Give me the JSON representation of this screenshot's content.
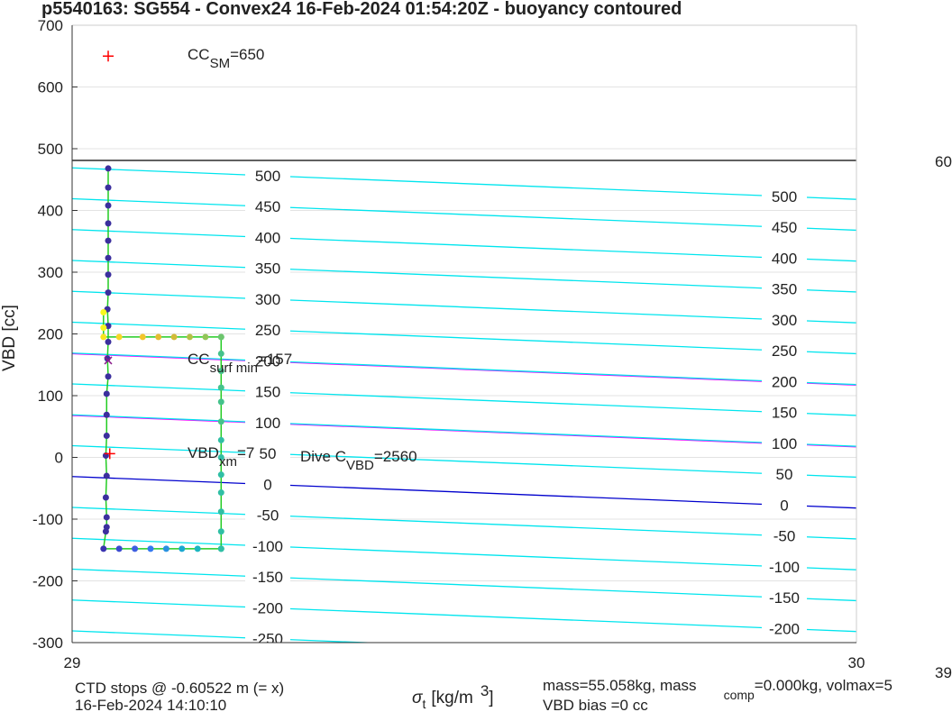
{
  "chart_data": {
    "type": "scatter",
    "title": "p5540163: SG554 - Convex24 16-Feb-2024 01:54:20Z - buoyancy contoured",
    "y_label": "VBD [cc]",
    "x_label": {
      "symbol": "σ",
      "sub": "t",
      "unit": "[kg/m",
      "sup": "3",
      "close": "]"
    },
    "xlim": [
      29,
      30
    ],
    "xticks": [
      29,
      30
    ],
    "ylim": [
      -300,
      700
    ],
    "yticks": [
      -300,
      -200,
      -100,
      0,
      100,
      200,
      300,
      400,
      500,
      600,
      700
    ],
    "grid": true,
    "contours": [
      {
        "level": -250,
        "vbd": [
          -281,
          -332
        ],
        "color": "#00e5ee"
      },
      {
        "level": -200,
        "vbd": [
          -231,
          -282
        ],
        "color": "#00e5ee"
      },
      {
        "level": -150,
        "vbd": [
          -181,
          -232
        ],
        "color": "#00e5ee"
      },
      {
        "level": -100,
        "vbd": [
          -131,
          -182
        ],
        "color": "#00e5ee"
      },
      {
        "level": -50,
        "vbd": [
          -81,
          -132
        ],
        "color": "#00e5ee"
      },
      {
        "level": 0,
        "vbd": [
          -31,
          -82
        ],
        "color": "#0000cd"
      },
      {
        "level": 50,
        "vbd": [
          19,
          -32
        ],
        "color": "#00e5ee"
      },
      {
        "level": 100,
        "vbd": [
          69,
          18
        ],
        "color": "#00e5ee"
      },
      {
        "level": 150,
        "vbd": [
          119,
          68
        ],
        "color": "#00e5ee"
      },
      {
        "level": 200,
        "vbd": [
          169,
          118
        ],
        "color": "#00e5ee"
      },
      {
        "level": 250,
        "vbd": [
          219,
          168
        ],
        "color": "#00e5ee"
      },
      {
        "level": 300,
        "vbd": [
          269,
          218
        ],
        "color": "#00e5ee"
      },
      {
        "level": 350,
        "vbd": [
          319,
          268
        ],
        "color": "#00e5ee"
      },
      {
        "level": 400,
        "vbd": [
          369,
          318
        ],
        "color": "#00e5ee"
      },
      {
        "level": 450,
        "vbd": [
          419,
          368
        ],
        "color": "#00e5ee"
      },
      {
        "level": 500,
        "vbd": [
          469,
          418
        ],
        "color": "#00e5ee"
      }
    ],
    "lines": [
      {
        "x": [
          29,
          30
        ],
        "y": [
          168,
          117
        ],
        "color": "#ff00ff"
      },
      {
        "x": [
          29,
          30
        ],
        "y": [
          68,
          17
        ],
        "color": "#ff00ff"
      },
      {
        "x": [
          29,
          30
        ],
        "y": [
          481,
          481
        ],
        "color": "#000000"
      }
    ],
    "series": [
      {
        "line_color": "#22cc22",
        "x": [
          29.046,
          29.046,
          29.046,
          29.046,
          29.046,
          29.046,
          29.046,
          29.046,
          29.045,
          29.046,
          29.046,
          29.045,
          29.046,
          29.044,
          29.044,
          29.044,
          29.043,
          29.044,
          29.043,
          29.044,
          29.044,
          29.043,
          29.04,
          29.06,
          29.08,
          29.1,
          29.12,
          29.14,
          29.16,
          29.19,
          29.19,
          29.19,
          29.19,
          29.19,
          29.19,
          29.19,
          29.19,
          29.19,
          29.19,
          29.19,
          29.19,
          29.19,
          29.19,
          29.19,
          29.17,
          29.15,
          29.13,
          29.11,
          29.09,
          29.06,
          29.04,
          29.04,
          29.04
        ],
        "values": [
          468,
          437,
          408,
          379,
          351,
          323,
          296,
          267,
          240,
          213,
          187,
          160,
          131,
          103,
          69,
          35,
          3,
          -30,
          -65,
          -97,
          -113,
          -120,
          -148,
          -148,
          -148,
          -148,
          -148,
          -148,
          -148,
          -148,
          -148,
          -120,
          -88,
          -57,
          -28,
          0,
          28,
          58,
          90,
          113,
          140,
          168,
          195,
          195,
          195,
          195,
          195,
          195,
          195,
          195,
          195,
          210,
          235
        ],
        "colors": [
          "#3b2f9e",
          "#3b2f9e",
          "#3b2f9e",
          "#3b2f9e",
          "#3b2f9e",
          "#3b2f9e",
          "#3b2f9e",
          "#3b2f9e",
          "#3b2f9e",
          "#3b2f9e",
          "#3b2f9e",
          "#3b2f9e",
          "#3b2f9e",
          "#3b2f9e",
          "#3b2f9e",
          "#3b2f9e",
          "#3b2f9e",
          "#3b2f9e",
          "#3b2f9e",
          "#3b2f9e",
          "#3b2f9e",
          "#3b2f9e",
          "#3a33b0",
          "#3b4ad0",
          "#3e5fe0",
          "#3479f0",
          "#2a92e0",
          "#1aa8d0",
          "#1cb6c0",
          "#2cbfae",
          "#30bfa5",
          "#30bfa5",
          "#30bfa5",
          "#30bfa5",
          "#30bfa5",
          "#30bfa5",
          "#30bfa5",
          "#45c28c",
          "#45c28c",
          "#45c28c",
          "#45c28c",
          "#45c28c",
          "#45c28c",
          "#6dc56d",
          "#93c558",
          "#b5c045",
          "#d2bb38",
          "#e6bc31",
          "#f2c52c",
          "#f8d626",
          "#f9e41f",
          "#f9f81e",
          "#f9f81e"
        ]
      }
    ],
    "markers": [
      {
        "x": 29.046,
        "y": 650,
        "symbol": "+",
        "color": "#ff0000"
      },
      {
        "x": 29.046,
        "y": 157,
        "symbol": "x",
        "color": "#8b1a8b"
      },
      {
        "x": 29.048,
        "y": 6,
        "symbol": "+",
        "color": "#ff0000"
      }
    ],
    "annotations": [
      {
        "main": "CC",
        "sub": "SM",
        "rest": "=650"
      },
      {
        "main": "CC",
        "sub": "surf min",
        "rest": "=157"
      },
      {
        "main": "VBD",
        "sub": "xm",
        "rest": "=7"
      },
      {
        "main": "Dive C",
        "sub": "VBD",
        "rest": "=2560"
      }
    ],
    "footer": {
      "ctd": "CTD stops @ -0.60522 m (= x)",
      "date": "16-Feb-2024 14:10:10",
      "mass": "mass=55.058kg, mass",
      "mass_sub": "comp",
      "mass_rest": "=0.000kg, volmax=5",
      "bias": "VBD bias =0 cc",
      "edge_top": "60",
      "edge_bottom": "39"
    }
  }
}
